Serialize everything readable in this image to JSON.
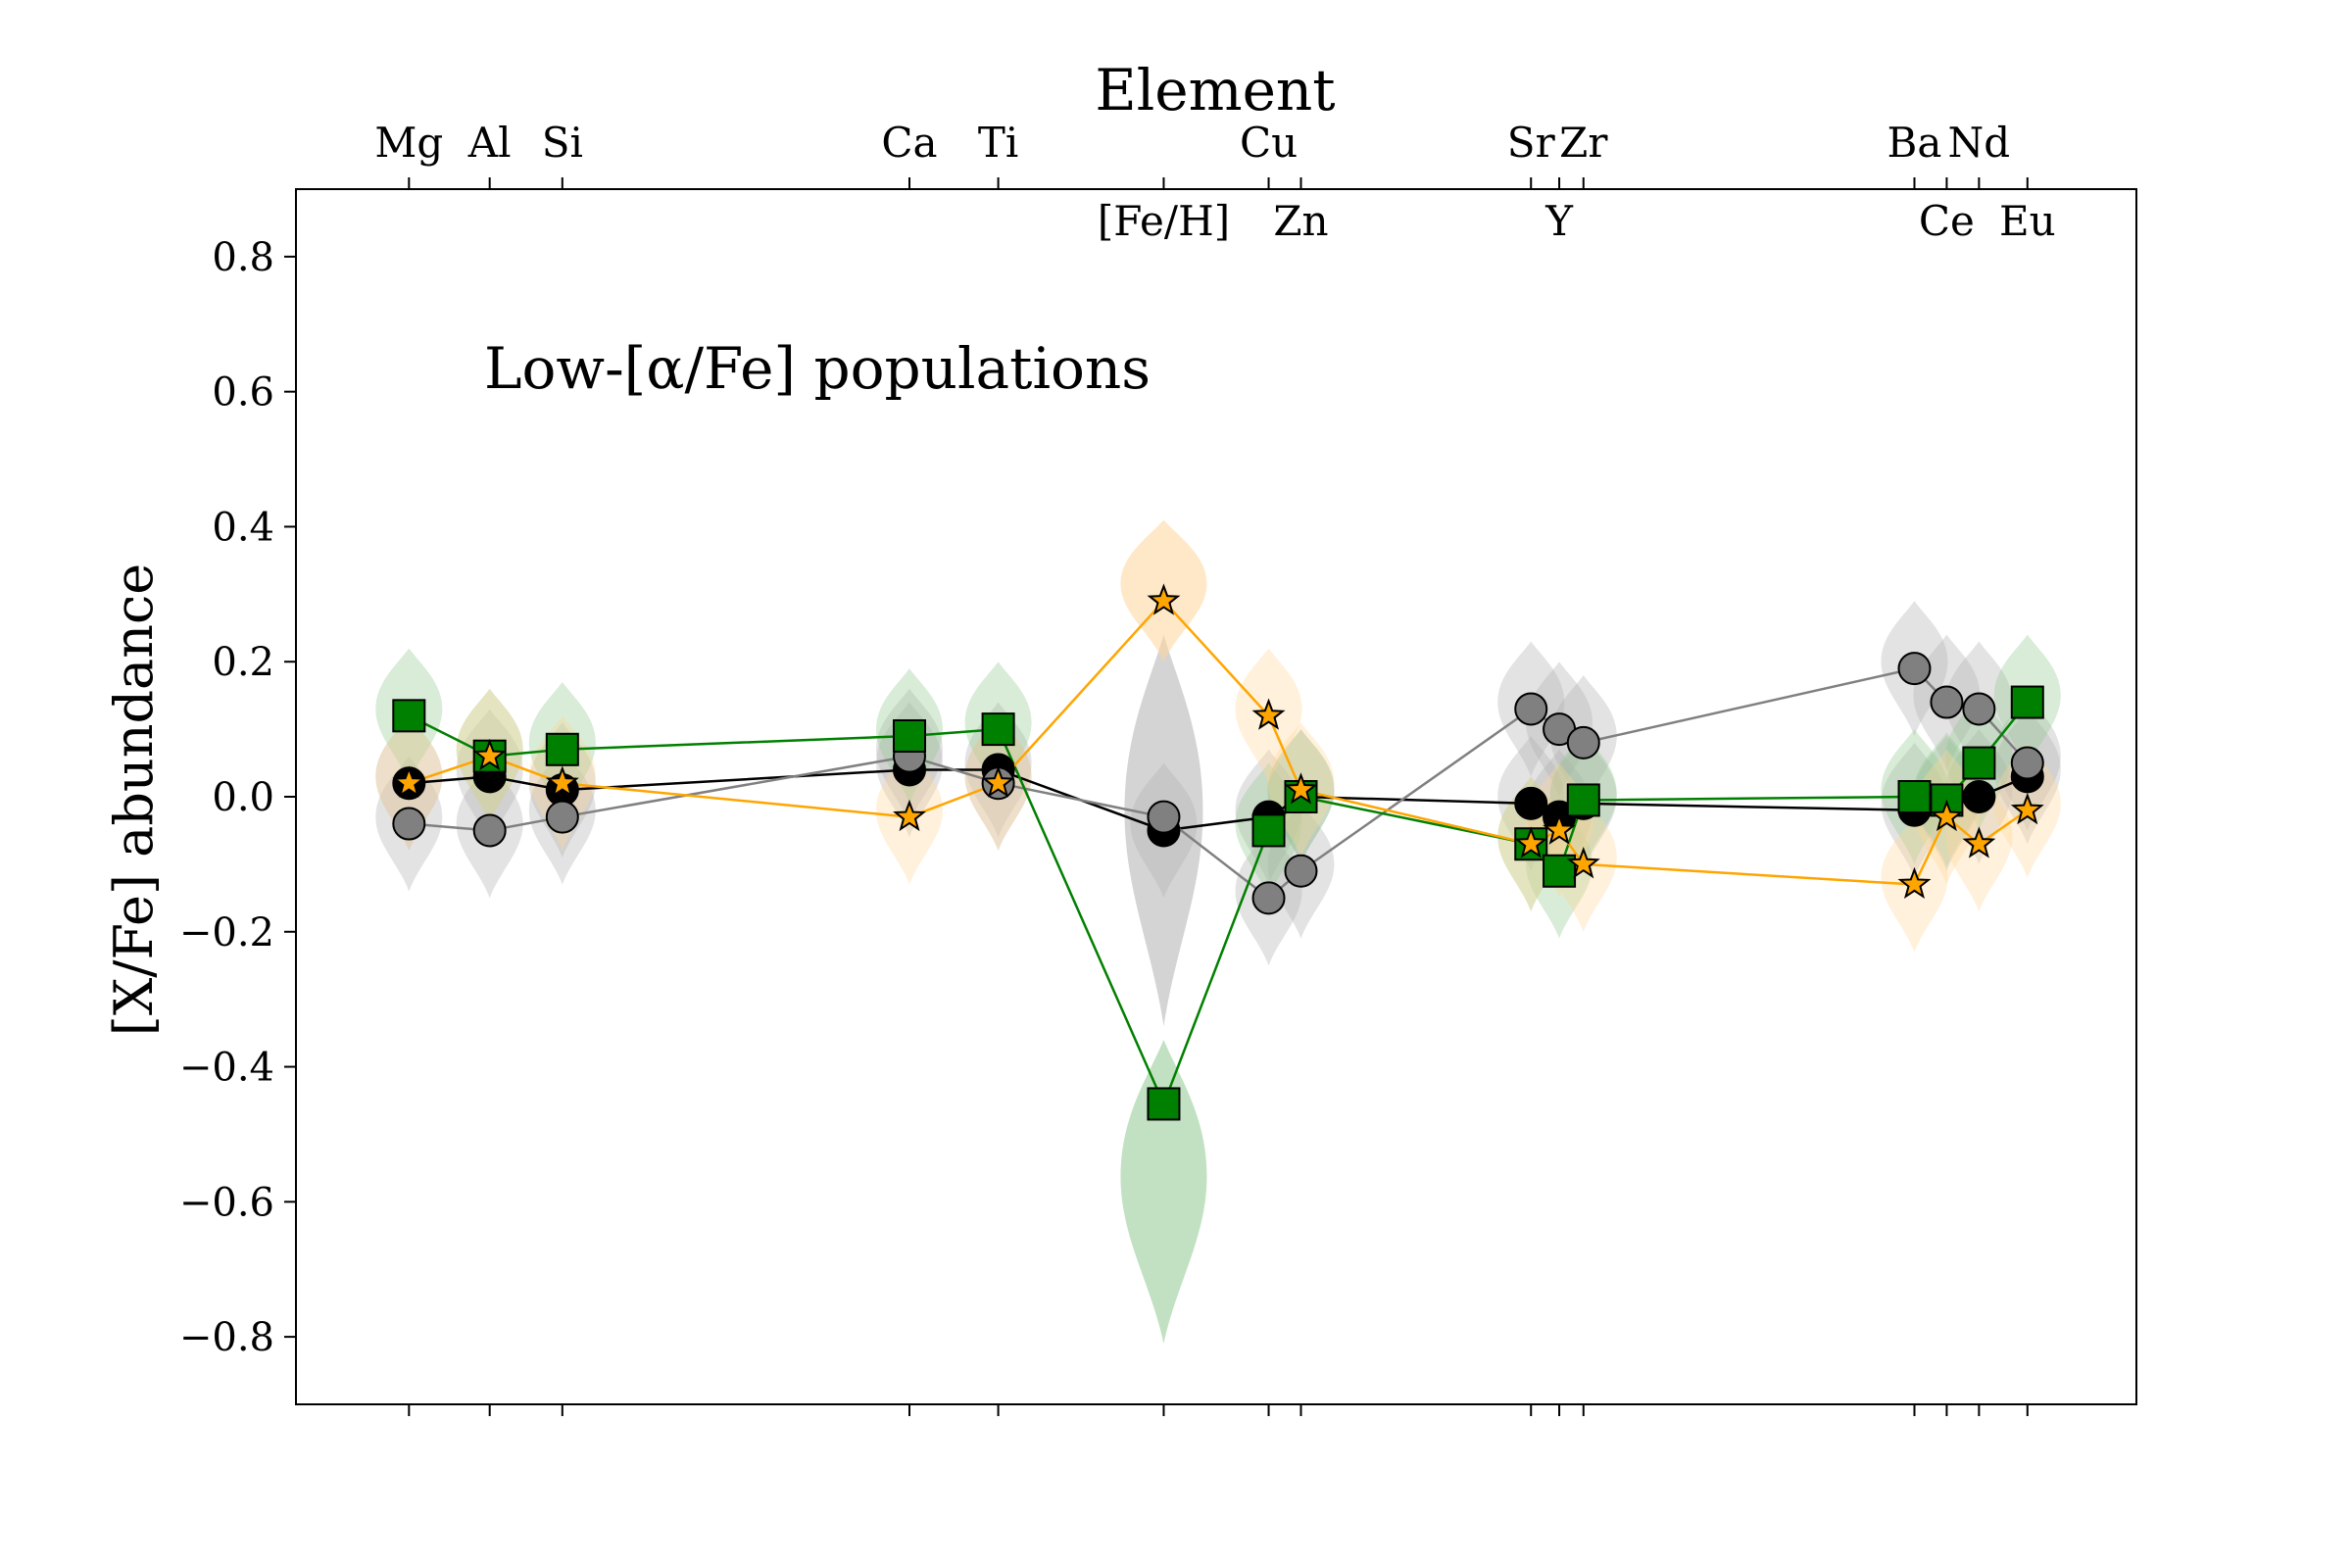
{
  "chart_data": {
    "type": "scatter",
    "title": "Element",
    "annotation": "Low-[α/Fe] populations",
    "ylabel": "[X/Fe] abundance",
    "xlabel": "",
    "ylim": [
      -0.9,
      0.9
    ],
    "yticks": [
      -0.8,
      -0.6,
      -0.4,
      -0.2,
      0.0,
      0.2,
      0.4,
      0.6,
      0.8
    ],
    "ytick_labels": [
      "−0.8",
      "−0.6",
      "−0.4",
      "−0.2",
      "0.0",
      "0.2",
      "0.4",
      "0.6",
      "0.8"
    ],
    "grid": false,
    "legend": "none",
    "xlim": [
      -1.4,
      21.4
    ],
    "elements": [
      {
        "label": "Mg",
        "x": 0.0,
        "row": "top"
      },
      {
        "label": "Al",
        "x": 1.0,
        "row": "top"
      },
      {
        "label": "Si",
        "x": 1.9,
        "row": "top"
      },
      {
        "label": "Ca",
        "x": 6.2,
        "row": "top"
      },
      {
        "label": "Ti",
        "x": 7.3,
        "row": "top"
      },
      {
        "label": "[Fe/H]",
        "x": 9.35,
        "row": "bottom"
      },
      {
        "label": "Cu",
        "x": 10.65,
        "row": "top"
      },
      {
        "label": "Zn",
        "x": 11.05,
        "row": "bottom"
      },
      {
        "label": "Sr",
        "x": 13.9,
        "row": "top"
      },
      {
        "label": "Y",
        "x": 14.25,
        "row": "bottom"
      },
      {
        "label": "Zr",
        "x": 14.55,
        "row": "top"
      },
      {
        "label": "Ba",
        "x": 18.65,
        "row": "top"
      },
      {
        "label": "Ce",
        "x": 19.05,
        "row": "bottom"
      },
      {
        "label": "Nd",
        "x": 19.45,
        "row": "top"
      },
      {
        "label": "Eu",
        "x": 20.05,
        "row": "bottom"
      }
    ],
    "colors": {
      "black": "#000000",
      "gray": "#808080",
      "green": "#008000",
      "orange": "#ffa500",
      "gray_violin": "#b0b0b0",
      "green_violin": "#8fc98f",
      "orange_violin": "#ffd699"
    },
    "series": [
      {
        "color": "black",
        "marker": "circle",
        "values": [
          0.02,
          0.03,
          0.01,
          0.04,
          0.04,
          -0.05,
          -0.03,
          0.0,
          -0.01,
          -0.03,
          -0.01,
          -0.02,
          -0.01,
          0.0,
          0.03
        ]
      },
      {
        "color": "gray",
        "marker": "circle",
        "values": [
          -0.04,
          -0.05,
          -0.03,
          0.06,
          0.02,
          -0.03,
          -0.15,
          -0.11,
          0.13,
          0.1,
          0.08,
          0.19,
          0.14,
          0.13,
          0.05
        ]
      },
      {
        "color": "green",
        "marker": "square",
        "values": [
          0.12,
          0.06,
          0.07,
          0.09,
          0.1,
          -0.455,
          -0.05,
          0.0,
          -0.07,
          -0.11,
          -0.005,
          0.0,
          -0.005,
          0.05,
          0.14
        ]
      },
      {
        "color": "orange",
        "marker": "star",
        "values": [
          0.02,
          0.06,
          0.02,
          -0.03,
          0.02,
          0.29,
          0.12,
          0.01,
          -0.07,
          -0.05,
          -0.1,
          -0.13,
          -0.03,
          -0.07,
          -0.02
        ]
      }
    ],
    "violins": [
      {
        "color": "gray_violin",
        "element": "[Fe/H]",
        "lo": -0.34,
        "hi": 0.24
      },
      {
        "color": "green_violin",
        "element": "[Fe/H]",
        "lo": -0.81,
        "hi": -0.36
      },
      {
        "color": "orange_violin",
        "element": "[Fe/H]",
        "lo": 0.2,
        "hi": 0.41
      }
    ]
  }
}
